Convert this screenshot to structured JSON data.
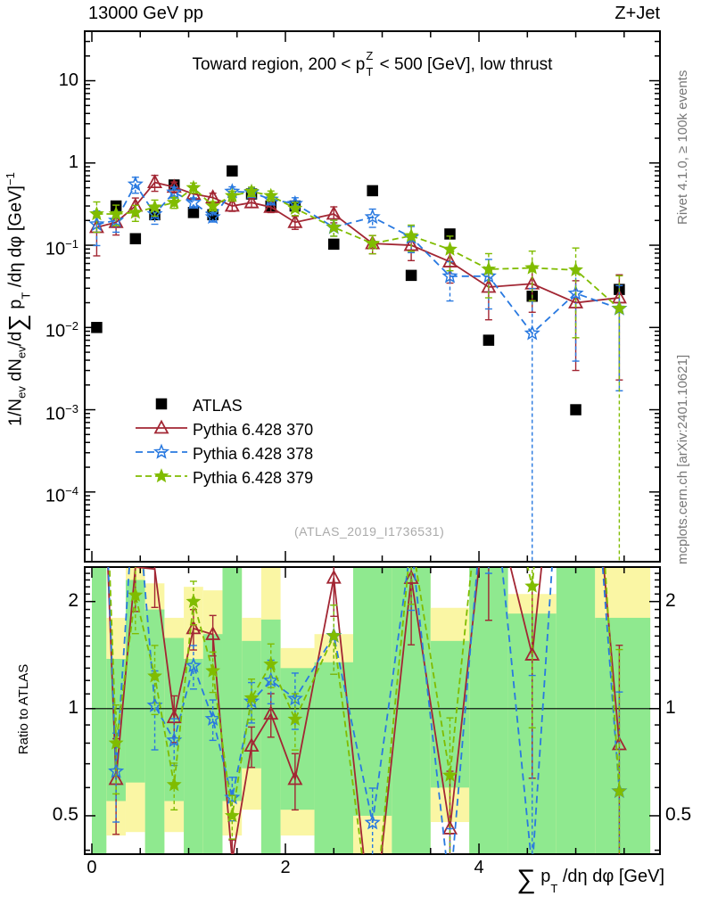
{
  "header": {
    "left": "13000 GeV pp",
    "right": "Z+Jet"
  },
  "plot_title": {
    "pre": "Toward region, 200 < p",
    "sup": "Z",
    "sub": "T",
    "post": " < 500 [GeV], low thrust"
  },
  "watermark": "(ATLAS_2019_I1736531)",
  "side_notes": {
    "top": "Rivet 4.1.0, ≥ 100k events",
    "bottom": "mcplots.cern.ch [arXiv:2401.10621]"
  },
  "axes": {
    "y_main_label": {
      "a": "1/N",
      "a_sub": "ev",
      "b": " dN",
      "b_sub": "ev",
      "c": "/d",
      "sigma": "∑",
      "d": " p",
      "d_sub": "T",
      "e": " /dη dφ  [GeV]",
      "e_sup": "−1"
    },
    "y_ratio_label": "Ratio to ATLAS",
    "x_label": {
      "sigma": "∑",
      "a": " p",
      "a_sub": "T",
      "b": " /dη dφ [GeV]"
    }
  },
  "legend": {
    "entries": [
      {
        "label": "ATLAS",
        "marker": "square",
        "color": "#000000",
        "line": "none",
        "dash": ""
      },
      {
        "label": "Pythia 6.428 370",
        "marker": "triangle-open",
        "color": "#a22633",
        "line": "solid",
        "dash": ""
      },
      {
        "label": "Pythia 6.428 378",
        "marker": "star-open",
        "color": "#2979e0",
        "line": "dashed",
        "dash": "8 5"
      },
      {
        "label": "Pythia 6.428 379",
        "marker": "star-fill",
        "color": "#80bc00",
        "line": "dashed",
        "dash": "7 4"
      }
    ]
  },
  "chart_data": {
    "type": "line",
    "title": "Toward region, 200 < pT^Z < 500 [GeV], low thrust",
    "xlabel": "sum pT /deta dphi [GeV]",
    "ylabel": "1/N_ev dN_ev/d sum pT/deta dphi [GeV]^-1",
    "x_range": [
      -0.0737,
      5.8703
    ],
    "y_range_main": [
      1.42e-05,
      40
    ],
    "y_range_ratio": [
      0.39,
      2.5
    ],
    "x_ticks": {
      "major": [
        {
          "v": 0,
          "label": "0"
        },
        {
          "v": 2,
          "label": "2"
        },
        {
          "v": 4,
          "label": "4"
        }
      ],
      "minor_step": 0.5
    },
    "y_ticks_main": [
      {
        "v": 10,
        "base": "10",
        "exp": ""
      },
      {
        "v": 1,
        "base": "1",
        "exp": ""
      },
      {
        "v": 0.1,
        "base": "10",
        "exp": "−1"
      },
      {
        "v": 0.01,
        "base": "10",
        "exp": "−2"
      },
      {
        "v": 0.001,
        "base": "10",
        "exp": "−3"
      },
      {
        "v": 0.0001,
        "base": "10",
        "exp": "−4"
      }
    ],
    "y_ticks_ratio": {
      "major": [
        {
          "v": 2,
          "label": "2"
        },
        {
          "v": 1,
          "label": "1"
        },
        {
          "v": 0.5,
          "label": "0.5"
        }
      ],
      "minor": [
        0.4,
        0.6,
        0.7,
        0.8,
        0.9,
        1.1,
        1.2,
        1.3,
        1.4,
        1.5,
        1.6,
        1.7,
        1.8,
        1.9,
        2.1,
        2.2,
        2.3,
        2.4
      ]
    },
    "x": [
      0.05,
      0.25,
      0.45,
      0.65,
      0.85,
      1.05,
      1.25,
      1.45,
      1.65,
      1.85,
      2.1,
      2.5,
      2.9,
      3.3,
      3.7,
      4.1,
      4.55,
      5.0,
      5.45
    ],
    "series": [
      {
        "name": "ATLAS",
        "marker": "square",
        "color": "#000000",
        "line": "none",
        "dash": "",
        "y": [
          0.01,
          0.3,
          0.12,
          0.235,
          0.54,
          0.25,
          0.235,
          0.8,
          0.42,
          0.3,
          0.3,
          0.103,
          0.46,
          0.043,
          0.137,
          0.007,
          0.024,
          0.001,
          0.029
        ],
        "yerr": [
          0.05,
          0.05,
          0.05,
          0.05,
          0.05,
          0.05,
          0.05,
          0.05,
          0.05,
          0.05,
          0.05,
          0.05,
          0.05,
          0.05,
          0.05,
          0.05,
          0.05,
          0.05,
          0.05
        ]
      },
      {
        "name": "Pythia 6.428 370",
        "marker": "triangle-open",
        "color": "#a22633",
        "line": "solid",
        "dash": "",
        "y": [
          0.165,
          0.19,
          0.3,
          0.58,
          0.51,
          0.42,
          0.38,
          0.3,
          0.33,
          0.29,
          0.19,
          0.24,
          0.105,
          0.1,
          0.063,
          0.031,
          0.034,
          0.02,
          0.023
        ],
        "yerr": [
          0.55,
          0.3,
          0.25,
          0.22,
          0.15,
          0.13,
          0.13,
          0.14,
          0.13,
          0.14,
          0.18,
          0.22,
          0.25,
          0.35,
          0.45,
          0.6,
          0.55,
          0.85,
          0.9
        ]
      },
      {
        "name": "Pythia 6.428 378",
        "marker": "star-open",
        "color": "#2979e0",
        "line": "dashed",
        "dash": "8 5",
        "y": [
          0.18,
          0.2,
          0.55,
          0.24,
          0.44,
          0.33,
          0.22,
          0.45,
          0.44,
          0.36,
          0.32,
          0.165,
          0.22,
          0.125,
          0.042,
          0.042,
          0.0085,
          0.026,
          0.017
        ],
        "yerr": [
          0.45,
          0.28,
          0.22,
          0.25,
          0.15,
          0.14,
          0.13,
          0.14,
          0.13,
          0.14,
          0.18,
          0.22,
          0.25,
          0.35,
          0.5,
          0.6,
          2.5,
          0.85,
          0.9
        ]
      },
      {
        "name": "Pythia 6.428 379",
        "marker": "star-fill",
        "color": "#80bc00",
        "line": "dashed",
        "dash": "7 4",
        "y": [
          0.24,
          0.24,
          0.25,
          0.29,
          0.33,
          0.5,
          0.3,
          0.4,
          0.45,
          0.4,
          0.28,
          0.165,
          0.105,
          0.13,
          0.089,
          0.051,
          0.053,
          0.05,
          0.017
        ],
        "yerr": [
          0.4,
          0.28,
          0.22,
          0.22,
          0.15,
          0.14,
          0.13,
          0.14,
          0.13,
          0.14,
          0.18,
          0.22,
          0.25,
          0.35,
          0.45,
          0.55,
          0.6,
          0.85,
          1.5
        ]
      }
    ],
    "ratio": {
      "reference": "ATLAS",
      "reference_line": 1,
      "band_colors": {
        "outer": "#faf6a4",
        "inner": "#8fe98f"
      },
      "band_edges": [
        0,
        0.15,
        0.35,
        0.55,
        0.75,
        0.95,
        1.15,
        1.35,
        1.55,
        1.75,
        1.95,
        2.3,
        2.7,
        3.1,
        3.5,
        3.9,
        4.3,
        4.8,
        5.2,
        5.77
      ],
      "yellow": [
        [
          0.38,
          2.52
        ],
        [
          0.44,
          1.8
        ],
        [
          0.45,
          2.52
        ],
        [
          0.38,
          2.25
        ],
        [
          0.45,
          1.8
        ],
        [
          0.38,
          2.2
        ],
        [
          0.38,
          2.15
        ],
        [
          0.44,
          2.52
        ],
        [
          0.52,
          1.8
        ],
        [
          0.38,
          2.52
        ],
        [
          0.44,
          1.48
        ],
        [
          0.38,
          1.62
        ],
        [
          0.38,
          2.52
        ],
        [
          0.38,
          2.52
        ],
        [
          0.48,
          1.92
        ],
        [
          0.38,
          2.52
        ],
        [
          0.38,
          2.1
        ],
        [
          0.38,
          2.52
        ],
        [
          0.38,
          2.52
        ]
      ],
      "green": [
        [
          0.38,
          2.52
        ],
        [
          0.55,
          1.38
        ],
        [
          0.62,
          2.3
        ],
        [
          0.38,
          1.9
        ],
        [
          0.55,
          1.58
        ],
        [
          0.38,
          1.38
        ],
        [
          0.38,
          1.62
        ],
        [
          0.55,
          2.52
        ],
        [
          0.68,
          1.55
        ],
        [
          0.38,
          1.78
        ],
        [
          0.52,
          1.3
        ],
        [
          0.38,
          1.35
        ],
        [
          0.5,
          2.52
        ],
        [
          0.38,
          2.52
        ],
        [
          0.6,
          1.55
        ],
        [
          0.38,
          2.52
        ],
        [
          0.38,
          1.85
        ],
        [
          0.38,
          2.52
        ],
        [
          0.38,
          1.8
        ]
      ]
    },
    "legend_position": "left-middle",
    "grid": false
  }
}
